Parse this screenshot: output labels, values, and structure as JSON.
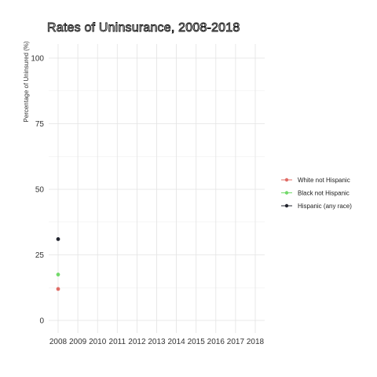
{
  "chart_data": {
    "type": "line",
    "title": "Rates of Uninsurance, 2008-2018",
    "xlabel": "",
    "ylabel": "Percentage of Uninsured (%)",
    "x": [
      2008,
      2009,
      2010,
      2011,
      2012,
      2013,
      2014,
      2015,
      2016,
      2017,
      2018
    ],
    "xlim": [
      2008,
      2018
    ],
    "ylim": [
      0,
      100
    ],
    "yticks": [
      0,
      25,
      50,
      75,
      100
    ],
    "grid": true,
    "legend_position": "right",
    "series": [
      {
        "name": "White not Hispanic",
        "color": "#e06c66",
        "points": [
          [
            2008,
            12
          ]
        ]
      },
      {
        "name": "Black not Hispanic",
        "color": "#72d96a",
        "points": [
          [
            2008,
            17.5
          ]
        ]
      },
      {
        "name": "Hispanic (any race)",
        "color": "#22252f",
        "points": [
          [
            2008,
            31
          ]
        ]
      }
    ]
  }
}
